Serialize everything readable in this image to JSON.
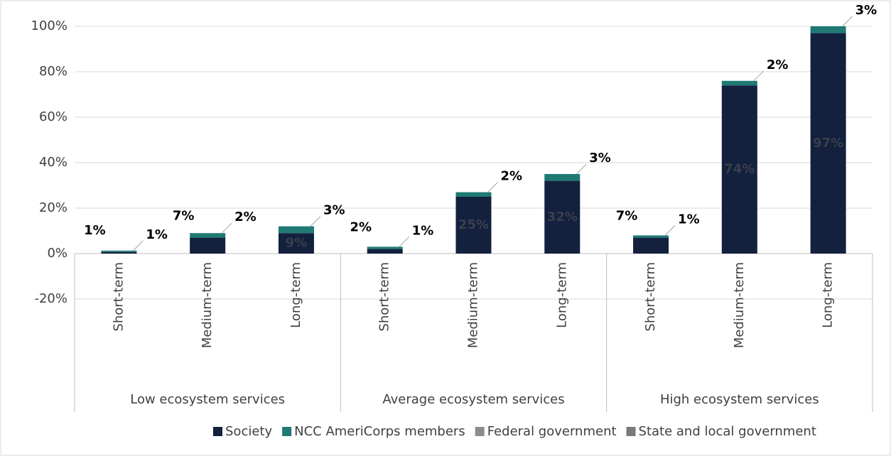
{
  "chart_data": {
    "type": "stacked_bar",
    "groups": [
      {
        "name": "Low ecosystem services",
        "categories": [
          "Short-term",
          "Medium-term",
          "Long-term"
        ]
      },
      {
        "name": "Average ecosystem services",
        "categories": [
          "Short-term",
          "Medium-term",
          "Long-term"
        ]
      },
      {
        "name": "High ecosystem services",
        "categories": [
          "Short-term",
          "Medium-term",
          "Long-term"
        ]
      }
    ],
    "series": [
      {
        "name": "Society",
        "color": "#13213f",
        "values": [
          0.7,
          7,
          9,
          2,
          25,
          32,
          7,
          74,
          97
        ],
        "value_labels": [
          "1%",
          "7%",
          "9%",
          "2%",
          "25%",
          "32%",
          "7%",
          "74%",
          "97%"
        ]
      },
      {
        "name": "NCC AmeriCorps members",
        "color": "#1f7a74",
        "values": [
          0.6,
          2,
          3,
          1,
          2,
          3,
          1,
          2,
          3
        ],
        "value_labels": [
          "1%",
          "2%",
          "3%",
          "1%",
          "2%",
          "3%",
          "1%",
          "2%",
          "3%"
        ]
      },
      {
        "name": "Federal government",
        "color": "#8c8c8c",
        "values": [
          0,
          0,
          0,
          0,
          0,
          0,
          0,
          0,
          0
        ]
      },
      {
        "name": "State and local government",
        "color": "#7a7a7a",
        "values": [
          0,
          0,
          0,
          0,
          0,
          0,
          0,
          0,
          0
        ]
      }
    ],
    "ylim": [
      -20,
      100
    ],
    "yticks": [
      {
        "value": -20,
        "label": "-20%"
      },
      {
        "value": 0,
        "label": "0%"
      },
      {
        "value": 20,
        "label": "20%"
      },
      {
        "value": 40,
        "label": "40%"
      },
      {
        "value": 60,
        "label": "60%"
      },
      {
        "value": 80,
        "label": "80%"
      },
      {
        "value": 100,
        "label": "100%"
      }
    ],
    "grid": true
  }
}
